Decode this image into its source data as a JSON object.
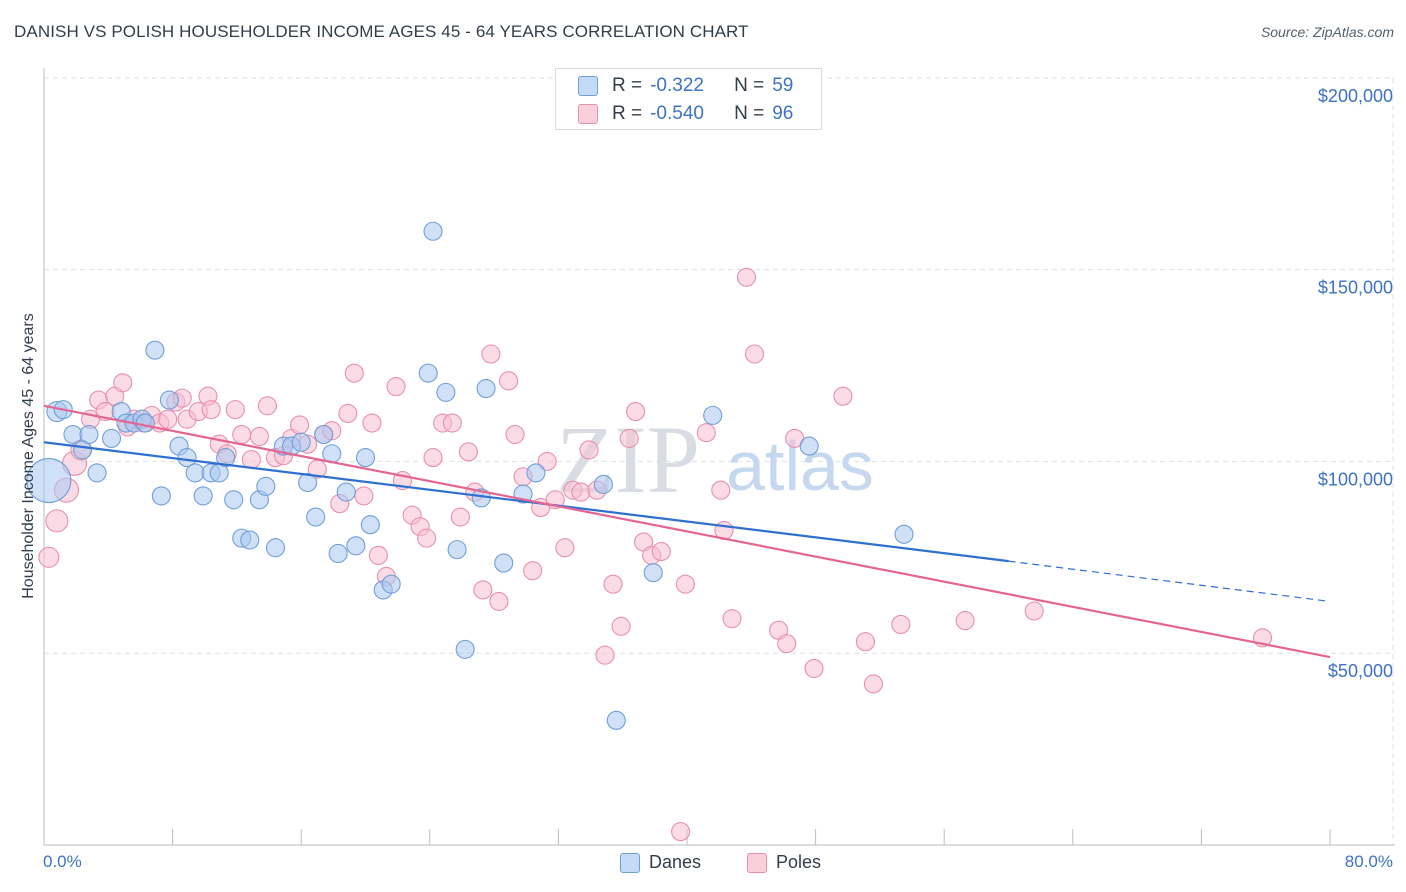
{
  "title": "DANISH VS POLISH HOUSEHOLDER INCOME AGES 45 - 64 YEARS CORRELATION CHART",
  "source": "Source: ZipAtlas.com",
  "watermark": {
    "zip": "ZIP",
    "atlas": "atlas"
  },
  "legend_box": {
    "r_label": "R =",
    "n_label": "N =",
    "rows": [
      {
        "r": "-0.322",
        "n": "59"
      },
      {
        "r": "-0.540",
        "n": "96"
      }
    ]
  },
  "colors": {
    "danes_fill": "#a9c8f0",
    "danes_stroke": "#6f9fd8",
    "danes_line": "#2f6fcf",
    "poles_fill": "#f7c0d1",
    "poles_stroke": "#e98fac",
    "poles_line": "#e46591",
    "axis_label": "#3d72c4",
    "grid": "#dde1e6"
  },
  "chart_data": {
    "type": "scatter",
    "title": "DANISH VS POLISH HOUSEHOLDER INCOME AGES 45 - 64 YEARS CORRELATION CHART",
    "xlabel": "",
    "ylabel": "Householder Income Ages 45 - 64 years",
    "xlim": [
      0,
      80
    ],
    "ylim": [
      0,
      205000
    ],
    "x_unit": "%",
    "x_tick_labels": [
      "0.0%",
      "80.0%"
    ],
    "y_ticks": [
      50000,
      100000,
      150000,
      200000
    ],
    "y_tick_labels": [
      "$50,000",
      "$100,000",
      "$150,000",
      "$200,000"
    ],
    "grid": true,
    "legend": "top-center and bottom",
    "series": [
      {
        "name": "Danes",
        "r": -0.322,
        "n": 59,
        "trend": {
          "x0": 0,
          "y0": 105000,
          "x1": 60,
          "y1": 74000,
          "dashed_to_x": 80,
          "dashed_to_y": 63500
        },
        "points": [
          [
            0.3,
            95000,
            22
          ],
          [
            0.8,
            113000,
            10
          ],
          [
            1.2,
            113500,
            9
          ],
          [
            1.8,
            107000,
            9
          ],
          [
            2.4,
            103000,
            9
          ],
          [
            2.8,
            107000,
            9
          ],
          [
            3.3,
            97000,
            9
          ],
          [
            4.2,
            106000,
            9
          ],
          [
            4.8,
            113000,
            9
          ],
          [
            5.1,
            110000,
            9
          ],
          [
            5.6,
            110000,
            9
          ],
          [
            6.1,
            111000,
            9
          ],
          [
            6.3,
            110000,
            9
          ],
          [
            6.9,
            129000,
            9
          ],
          [
            7.3,
            91000,
            9
          ],
          [
            7.8,
            116000,
            9
          ],
          [
            8.4,
            104000,
            9
          ],
          [
            8.9,
            101000,
            9
          ],
          [
            9.4,
            97000,
            9
          ],
          [
            9.9,
            91000,
            9
          ],
          [
            10.4,
            97000,
            9
          ],
          [
            10.9,
            97000,
            9
          ],
          [
            11.3,
            101000,
            9
          ],
          [
            11.8,
            90000,
            9
          ],
          [
            12.3,
            80000,
            9
          ],
          [
            12.8,
            79500,
            9
          ],
          [
            13.4,
            90000,
            9
          ],
          [
            13.8,
            93500,
            9
          ],
          [
            14.4,
            77500,
            9
          ],
          [
            14.9,
            104000,
            9
          ],
          [
            15.4,
            104000,
            9
          ],
          [
            16.0,
            105000,
            9
          ],
          [
            16.4,
            94500,
            9
          ],
          [
            16.9,
            85500,
            9
          ],
          [
            17.4,
            107000,
            9
          ],
          [
            17.9,
            102000,
            9
          ],
          [
            18.3,
            76000,
            9
          ],
          [
            18.8,
            92000,
            9
          ],
          [
            19.4,
            78000,
            9
          ],
          [
            20.0,
            101000,
            9
          ],
          [
            20.3,
            83500,
            9
          ],
          [
            21.1,
            66500,
            9
          ],
          [
            21.6,
            68000,
            9
          ],
          [
            23.9,
            123000,
            9
          ],
          [
            24.2,
            160000,
            9
          ],
          [
            25.0,
            118000,
            9
          ],
          [
            25.7,
            77000,
            9
          ],
          [
            26.2,
            51000,
            9
          ],
          [
            27.2,
            90500,
            9
          ],
          [
            27.5,
            119000,
            9
          ],
          [
            28.6,
            73500,
            9
          ],
          [
            29.8,
            91500,
            9
          ],
          [
            30.6,
            97000,
            9
          ],
          [
            34.8,
            94000,
            9
          ],
          [
            35.6,
            32500,
            9
          ],
          [
            37.9,
            71000,
            9
          ],
          [
            41.6,
            112000,
            9
          ],
          [
            47.6,
            104000,
            9
          ],
          [
            53.5,
            81000,
            9
          ]
        ]
      },
      {
        "name": "Poles",
        "r": -0.54,
        "n": 96,
        "trend": {
          "x0": 0,
          "y0": 114500,
          "x1": 80,
          "y1": 49000
        },
        "points": [
          [
            0.3,
            75000,
            10
          ],
          [
            0.8,
            84500,
            11
          ],
          [
            1.4,
            92500,
            12
          ],
          [
            1.9,
            99500,
            12
          ],
          [
            2.3,
            103000,
            10
          ],
          [
            2.9,
            111000,
            9
          ],
          [
            3.4,
            116000,
            9
          ],
          [
            3.8,
            113000,
            9
          ],
          [
            4.4,
            117000,
            9
          ],
          [
            4.9,
            120500,
            9
          ],
          [
            5.2,
            109000,
            9
          ],
          [
            5.6,
            111000,
            9
          ],
          [
            6.2,
            110000,
            9
          ],
          [
            6.7,
            112000,
            9
          ],
          [
            7.2,
            110000,
            9
          ],
          [
            7.7,
            111000,
            9
          ],
          [
            8.2,
            115500,
            9
          ],
          [
            8.6,
            116500,
            9
          ],
          [
            8.9,
            111000,
            9
          ],
          [
            9.6,
            113000,
            9
          ],
          [
            10.2,
            117000,
            9
          ],
          [
            10.4,
            113500,
            9
          ],
          [
            10.9,
            104500,
            9
          ],
          [
            11.4,
            102000,
            9
          ],
          [
            11.9,
            113500,
            9
          ],
          [
            12.3,
            107000,
            9
          ],
          [
            12.9,
            100500,
            9
          ],
          [
            13.4,
            106500,
            9
          ],
          [
            13.9,
            114500,
            9
          ],
          [
            14.4,
            101000,
            9
          ],
          [
            14.9,
            101500,
            9
          ],
          [
            15.4,
            106000,
            9
          ],
          [
            15.9,
            109500,
            9
          ],
          [
            16.4,
            104500,
            9
          ],
          [
            17.0,
            98000,
            9
          ],
          [
            17.4,
            107000,
            9
          ],
          [
            17.9,
            108000,
            9
          ],
          [
            18.4,
            89000,
            9
          ],
          [
            18.9,
            112500,
            9
          ],
          [
            19.3,
            123000,
            9
          ],
          [
            19.9,
            91000,
            9
          ],
          [
            20.4,
            110000,
            9
          ],
          [
            20.8,
            75500,
            9
          ],
          [
            21.3,
            70000,
            9
          ],
          [
            21.9,
            119500,
            9
          ],
          [
            22.3,
            95000,
            9
          ],
          [
            22.9,
            86000,
            9
          ],
          [
            23.4,
            83000,
            9
          ],
          [
            23.8,
            80000,
            9
          ],
          [
            24.2,
            101000,
            9
          ],
          [
            24.8,
            110000,
            9
          ],
          [
            25.4,
            110000,
            9
          ],
          [
            25.9,
            85500,
            9
          ],
          [
            26.4,
            102500,
            9
          ],
          [
            26.8,
            92000,
            9
          ],
          [
            27.3,
            66500,
            9
          ],
          [
            27.8,
            128000,
            9
          ],
          [
            28.3,
            63500,
            9
          ],
          [
            28.9,
            121000,
            9
          ],
          [
            29.3,
            107000,
            9
          ],
          [
            29.8,
            96000,
            9
          ],
          [
            30.4,
            71500,
            9
          ],
          [
            30.9,
            88000,
            9
          ],
          [
            31.3,
            100000,
            9
          ],
          [
            31.8,
            90000,
            9
          ],
          [
            32.4,
            77500,
            9
          ],
          [
            32.9,
            92500,
            9
          ],
          [
            33.4,
            92000,
            9
          ],
          [
            33.9,
            103000,
            9
          ],
          [
            34.4,
            92500,
            9
          ],
          [
            34.9,
            49500,
            9
          ],
          [
            35.4,
            68000,
            9
          ],
          [
            35.9,
            57000,
            9
          ],
          [
            36.4,
            106000,
            9
          ],
          [
            36.8,
            113000,
            9
          ],
          [
            37.3,
            79000,
            9
          ],
          [
            37.8,
            75500,
            9
          ],
          [
            38.4,
            76500,
            9
          ],
          [
            39.9,
            68000,
            9
          ],
          [
            39.6,
            3500,
            9
          ],
          [
            41.2,
            107500,
            9
          ],
          [
            42.3,
            82000,
            9
          ],
          [
            42.1,
            92500,
            9
          ],
          [
            42.8,
            59000,
            9
          ],
          [
            43.7,
            148000,
            9
          ],
          [
            44.2,
            128000,
            9
          ],
          [
            45.7,
            56000,
            9
          ],
          [
            46.2,
            52500,
            9
          ],
          [
            46.7,
            106000,
            9
          ],
          [
            47.9,
            46000,
            9
          ],
          [
            49.7,
            117000,
            9
          ],
          [
            51.1,
            53000,
            9
          ],
          [
            51.6,
            42000,
            9
          ],
          [
            53.3,
            57500,
            9
          ],
          [
            57.3,
            58500,
            9
          ],
          [
            61.6,
            61000,
            9
          ],
          [
            75.8,
            54000,
            9
          ]
        ]
      }
    ]
  },
  "legend_bottom": [
    {
      "label": "Danes"
    },
    {
      "label": "Poles"
    }
  ]
}
